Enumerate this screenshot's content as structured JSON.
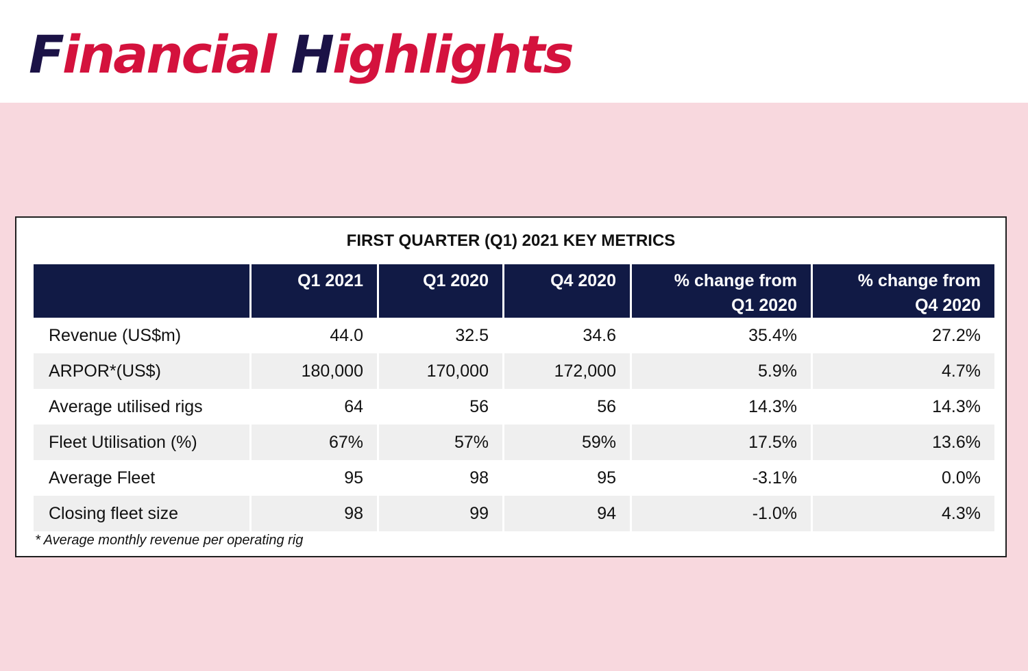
{
  "title": {
    "initial_1": "F",
    "rest_1": "inancial",
    "initial_2": "H",
    "rest_2": "ighlights"
  },
  "colors": {
    "title_initial": "#1b1246",
    "title_accent": "#d4123d",
    "background_pink": "#f8d8de",
    "header_navy": "#111a45"
  },
  "table": {
    "title": "FIRST QUARTER (Q1) 2021 KEY METRICS",
    "headers": [
      {
        "line1": "",
        "line2": ""
      },
      {
        "line1": "Q1 2021",
        "line2": ""
      },
      {
        "line1": "Q1 2020",
        "line2": ""
      },
      {
        "line1": "Q4 2020",
        "line2": ""
      },
      {
        "line1": "% change from",
        "line2": "Q1 2020"
      },
      {
        "line1": "% change from",
        "line2": "Q4 2020"
      }
    ],
    "rows": [
      [
        "Revenue (US$m)",
        "44.0",
        "32.5",
        "34.6",
        "35.4%",
        "27.2%"
      ],
      [
        "ARPOR*(US$)",
        "180,000",
        "170,000",
        "172,000",
        "5.9%",
        "4.7%"
      ],
      [
        "Average utilised rigs",
        "64",
        "56",
        "56",
        "14.3%",
        "14.3%"
      ],
      [
        "Fleet Utilisation (%)",
        "67%",
        "57%",
        "59%",
        "17.5%",
        "13.6%"
      ],
      [
        "Average Fleet",
        "95",
        "98",
        "95",
        "-3.1%",
        "0.0%"
      ],
      [
        "Closing fleet size",
        "98",
        "99",
        "94",
        "-1.0%",
        "4.3%"
      ]
    ],
    "footnote": "* Average monthly revenue per operating rig"
  }
}
